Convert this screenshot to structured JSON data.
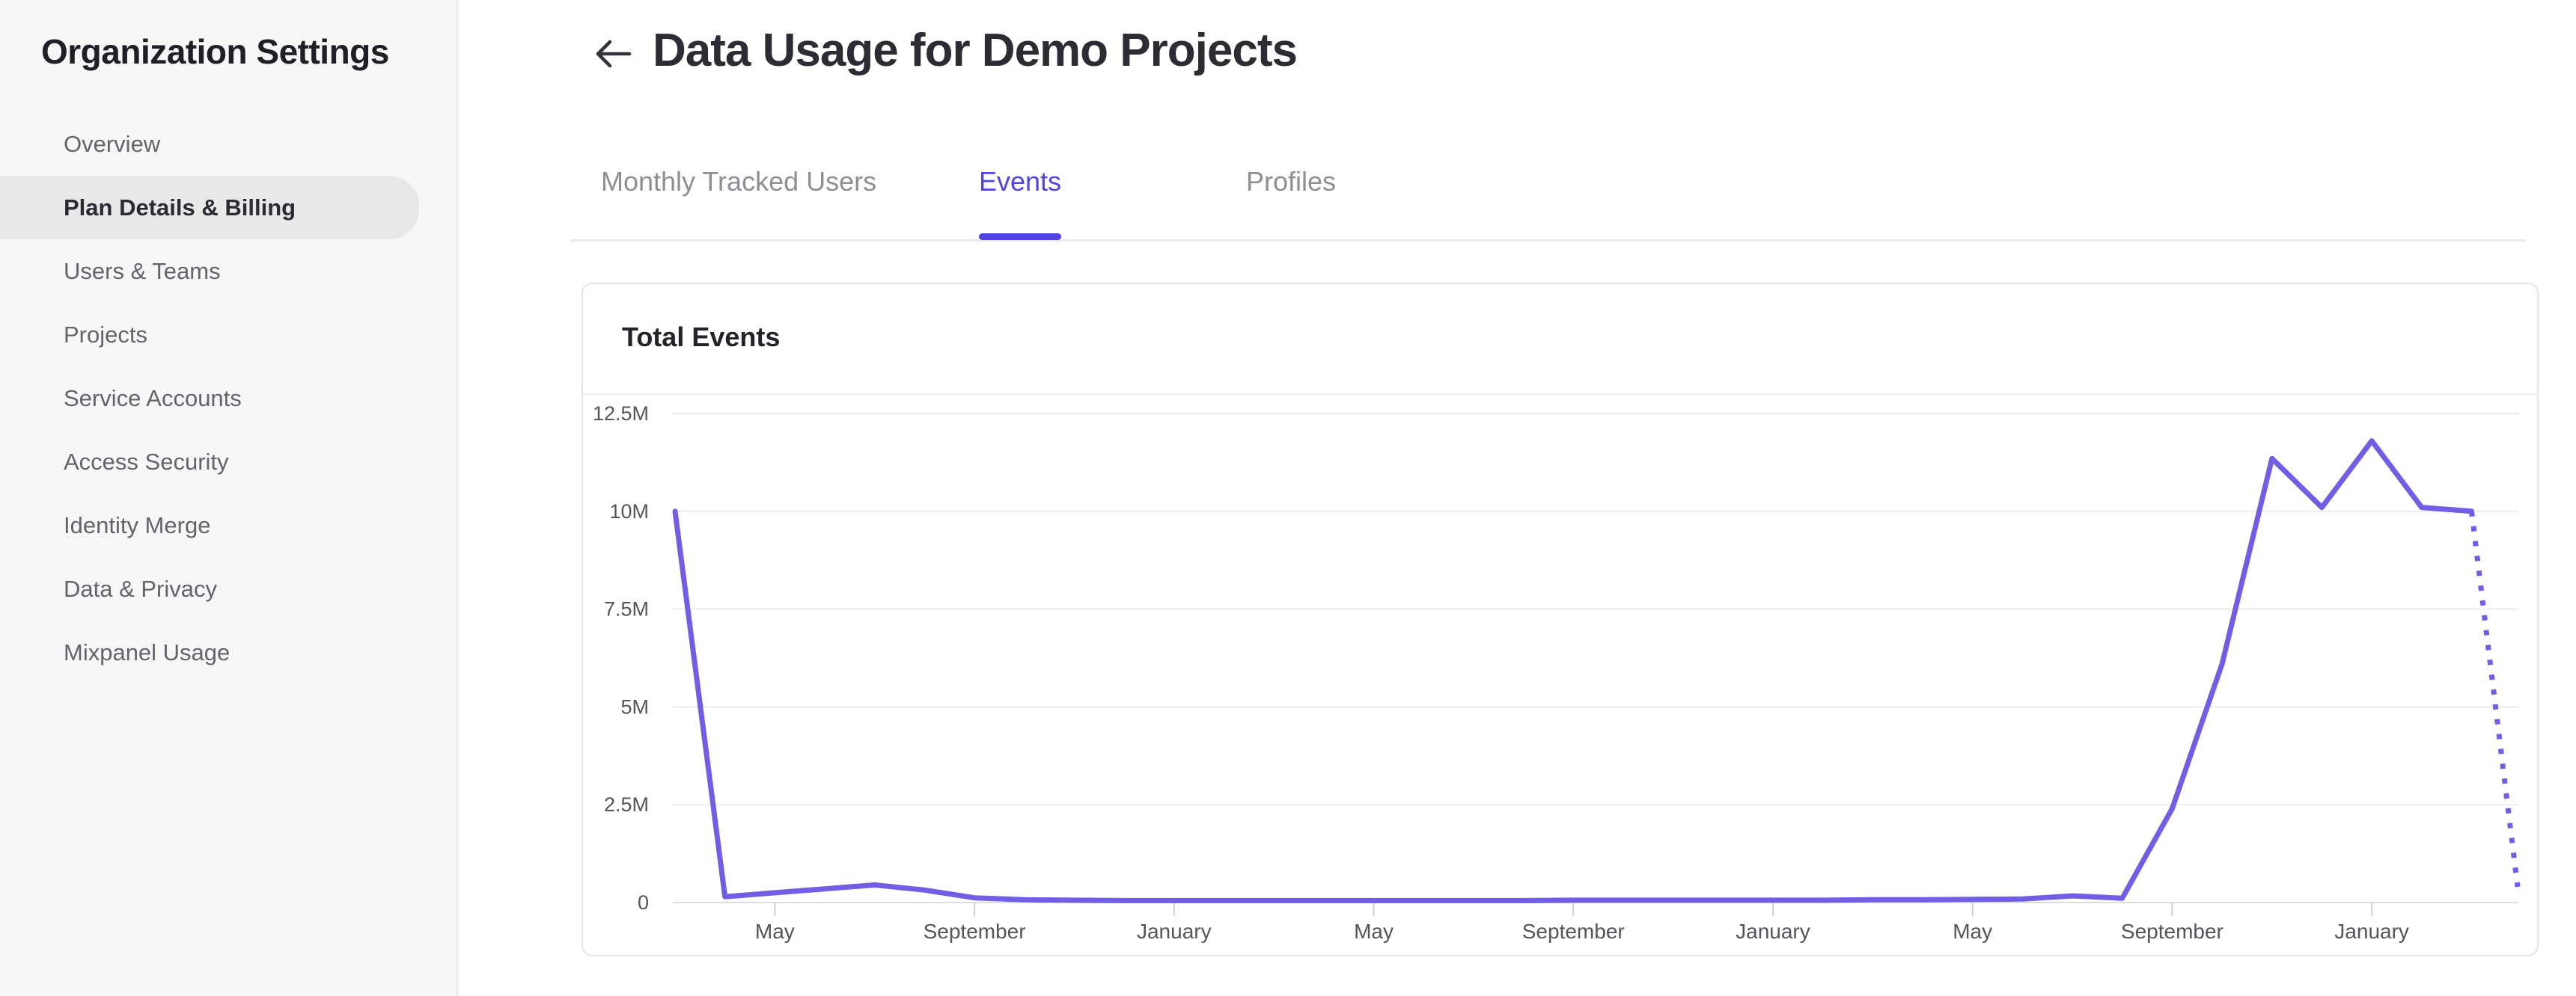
{
  "sidebar": {
    "title": "Organization Settings",
    "items": [
      {
        "label": "Overview",
        "selected": false
      },
      {
        "label": "Plan Details & Billing",
        "selected": true
      },
      {
        "label": "Users & Teams",
        "selected": false
      },
      {
        "label": "Projects",
        "selected": false
      },
      {
        "label": "Service Accounts",
        "selected": false
      },
      {
        "label": "Access Security",
        "selected": false
      },
      {
        "label": "Identity Merge",
        "selected": false
      },
      {
        "label": "Data & Privacy",
        "selected": false
      },
      {
        "label": "Mixpanel Usage",
        "selected": false
      }
    ]
  },
  "header": {
    "title": "Data Usage for Demo Projects"
  },
  "tabs": [
    {
      "label": "Monthly Tracked Users",
      "active": false
    },
    {
      "label": "Events",
      "active": true
    },
    {
      "label": "Profiles",
      "active": false
    }
  ],
  "card": {
    "title": "Total Events"
  },
  "chart_data": {
    "type": "line",
    "title": "Total Events",
    "x_interval": "monthly",
    "ylim_events": [
      0,
      12500000
    ],
    "y_tick_labels": [
      "12.5M",
      "10M",
      "7.5M",
      "5M",
      "2.5M",
      "0"
    ],
    "y_tick_values_millions": [
      12.5,
      10,
      7.5,
      5,
      2.5,
      0
    ],
    "x_tick_labels": [
      "May",
      "September",
      "January",
      "May",
      "September",
      "January",
      "May",
      "September",
      "January"
    ],
    "x_tick_indices": [
      2,
      6,
      10,
      14,
      18,
      22,
      26,
      30,
      34
    ],
    "grid": "horizontal gridlines only",
    "legend": "none",
    "series": [
      {
        "name": "Total Events",
        "style": "solid",
        "values_millions": [
          10,
          0.15,
          0.25,
          0.35,
          0.45,
          0.32,
          0.12,
          0.07,
          0.06,
          0.05,
          0.05,
          0.05,
          0.05,
          0.05,
          0.05,
          0.05,
          0.05,
          0.05,
          0.06,
          0.06,
          0.06,
          0.06,
          0.06,
          0.06,
          0.07,
          0.07,
          0.08,
          0.09,
          0.17,
          0.11,
          2.4,
          6.1,
          11.35,
          10.1,
          11.8,
          10.1,
          10.0
        ]
      }
    ],
    "projection": {
      "name": "incomplete current month",
      "style": "dotted",
      "from_index": 36,
      "to_index": 37,
      "values_millions": [
        10.0,
        0.4
      ]
    }
  },
  "colors": {
    "accent": "#4f44df",
    "line": "#705fe4",
    "sidebar_bg": "#f7f7f8",
    "sidebar_pill": "#e8e8e9",
    "gridline": "#ededef",
    "axis_line": "#dcdcdf",
    "tick": "#cfcfd3",
    "axis_label": "#54545c",
    "inactive_tab": "#8e8e96",
    "title_text": "#2c2c35"
  }
}
